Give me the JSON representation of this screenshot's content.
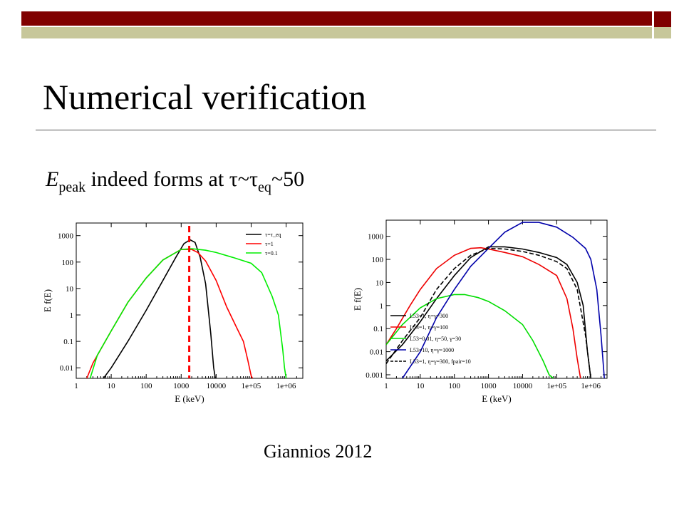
{
  "slide": {
    "title": "Numerical verification",
    "subtitle_main": "E",
    "subtitle_sub": "peak",
    "subtitle_rest": " indeed forms at τ~τ",
    "subtitle_sub2": "eq",
    "subtitle_tail": "~50",
    "credit": "Giannios 2012"
  },
  "colors": {
    "accent_dark": "#800000",
    "accent_light": "#c7c79a"
  },
  "chart_data": [
    {
      "type": "line",
      "xlabel": "E (keV)",
      "ylabel": "E f(E)",
      "xscale": "log",
      "yscale": "log",
      "xlim": [
        1,
        3000000
      ],
      "ylim": [
        0.004,
        3000
      ],
      "x_ticks": [
        1,
        10,
        100,
        1000,
        10000,
        100000,
        1000000
      ],
      "x_tick_labels": [
        "1",
        "10",
        "100",
        "1000",
        "10000",
        "1e+05",
        "1e+06"
      ],
      "y_ticks": [
        0.01,
        0.1,
        1,
        10,
        100,
        1000
      ],
      "y_tick_labels": [
        "0.01",
        "0.1",
        "1",
        "10",
        "100",
        "1000"
      ],
      "legend_position": "top-right",
      "vline": {
        "x": 1700,
        "color": "#ff0000",
        "style": "dashed"
      },
      "series": [
        {
          "name": "τ=τ_eq",
          "color": "#000000",
          "x": [
            6,
            10,
            30,
            100,
            300,
            700,
            1200,
            1800,
            2500,
            3500,
            5000,
            7000,
            8500,
            9500
          ],
          "y": [
            0.004,
            0.01,
            0.1,
            1.5,
            20,
            150,
            500,
            700,
            550,
            150,
            15,
            0.2,
            0.01,
            0.004
          ]
        },
        {
          "name": "τ=1",
          "color": "#ff0000",
          "x": [
            2,
            3,
            10,
            30,
            100,
            300,
            1000,
            2000,
            3000,
            5000,
            10000,
            20000,
            40000,
            60000,
            80000,
            100000,
            110000
          ],
          "y": [
            0.004,
            0.015,
            0.25,
            3,
            25,
            120,
            300,
            300,
            230,
            110,
            20,
            2,
            0.3,
            0.1,
            0.02,
            0.005,
            0.004
          ]
        },
        {
          "name": "τ=0.1",
          "color": "#00ee00",
          "x": [
            2.5,
            4,
            10,
            30,
            100,
            300,
            1000,
            2000,
            5000,
            10000,
            30000,
            100000,
            200000,
            400000,
            600000,
            800000,
            900000,
            1000000
          ],
          "y": [
            0.004,
            0.03,
            0.25,
            3,
            25,
            120,
            300,
            320,
            280,
            230,
            150,
            90,
            40,
            5,
            1,
            0.05,
            0.01,
            0.004
          ]
        }
      ]
    },
    {
      "type": "line",
      "xlabel": "E (keV)",
      "ylabel": "E f(E)",
      "xscale": "log",
      "yscale": "log",
      "xlim": [
        1,
        3000000
      ],
      "ylim": [
        0.0007,
        5000
      ],
      "x_ticks": [
        1,
        10,
        100,
        1000,
        10000,
        100000,
        1000000
      ],
      "x_tick_labels": [
        "1",
        "10",
        "100",
        "1000",
        "10000",
        "1e+05",
        "1e+06"
      ],
      "y_ticks": [
        0.001,
        0.01,
        0.1,
        1,
        10,
        100,
        1000
      ],
      "y_tick_labels": [
        "0.001",
        "0.01",
        "0.1",
        "1",
        "10",
        "100",
        "1000"
      ],
      "legend_position": "bottom-left",
      "series": [
        {
          "name": "L53=1, η=γ=300",
          "color": "#000000",
          "dash": false,
          "x": [
            1,
            3,
            10,
            30,
            100,
            300,
            1000,
            3000,
            10000,
            30000,
            100000,
            200000,
            400000,
            600000,
            800000,
            1000000
          ],
          "y": [
            0.004,
            0.02,
            0.2,
            2,
            20,
            120,
            350,
            350,
            280,
            200,
            120,
            60,
            10,
            1,
            0.01,
            0.0007
          ]
        },
        {
          "name": "L53=1, η=γ=100",
          "color": "#ee0000",
          "dash": false,
          "x": [
            1,
            2,
            5,
            10,
            30,
            100,
            300,
            600,
            1000,
            3000,
            10000,
            30000,
            100000,
            200000,
            300000,
            400000,
            500000
          ],
          "y": [
            0.02,
            0.1,
            1,
            5,
            40,
            150,
            300,
            320,
            280,
            200,
            130,
            60,
            20,
            2,
            0.1,
            0.005,
            0.0007
          ]
        },
        {
          "name": "L53=0.01, η=50, γ=30",
          "color": "#00dd00",
          "dash": false,
          "x": [
            1,
            3,
            10,
            30,
            100,
            200,
            500,
            1000,
            3000,
            10000,
            20000,
            40000,
            60000,
            80000
          ],
          "y": [
            0.02,
            0.15,
            0.8,
            2,
            3,
            3,
            2.2,
            1.5,
            0.6,
            0.15,
            0.03,
            0.004,
            0.001,
            0.0007
          ]
        },
        {
          "name": "L53=10, η=γ=1000",
          "color": "#0000aa",
          "dash": false,
          "x": [
            3,
            10,
            30,
            100,
            300,
            1000,
            3000,
            10000,
            30000,
            100000,
            300000,
            700000,
            1000000,
            1500000,
            2000000,
            2500000
          ],
          "y": [
            0.0007,
            0.01,
            0.3,
            5,
            50,
            300,
            1500,
            4000,
            4000,
            2500,
            900,
            300,
            100,
            5,
            0.05,
            0.0007
          ]
        },
        {
          "name": "L53=1, η=γ=300, fpair=10",
          "color": "#000000",
          "dash": true,
          "x": [
            1,
            3,
            10,
            30,
            100,
            300,
            1000,
            3000,
            10000,
            30000,
            100000,
            200000,
            400000,
            700000,
            1000000
          ],
          "y": [
            0.003,
            0.03,
            0.3,
            5,
            40,
            150,
            300,
            280,
            220,
            150,
            80,
            40,
            5,
            0.05,
            0.0007
          ]
        }
      ]
    }
  ]
}
